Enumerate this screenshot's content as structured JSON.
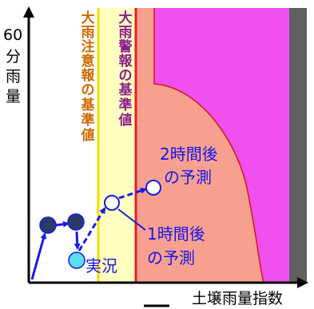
{
  "y_axis": {
    "value_label": "60",
    "text_chars": [
      "分",
      "雨",
      "量"
    ]
  },
  "x_axis": {
    "label": "土壌雨量指数"
  },
  "bands": {
    "advisory_label_chars": [
      "大",
      "雨",
      "注",
      "意",
      "報",
      "の",
      "基",
      "準",
      "値"
    ],
    "warning_label_chars": [
      "大",
      "雨",
      "警",
      "報",
      "の",
      "基",
      "準",
      "値"
    ]
  },
  "annotations": {
    "current": "実況",
    "forecast_1h_line1": "1時間後",
    "forecast_1h_line2": "の予測",
    "forecast_2h_line1": "2時間後",
    "forecast_2h_line2": "の予測"
  },
  "colors": {
    "advisory_band": "#ffffc0",
    "advisory_line": "#ffd800",
    "warning_region": "#f8a090",
    "warning_line": "#e02020",
    "danger_region": "#f050f0",
    "extreme_region": "#606060",
    "past_marker": "#283c64",
    "current_marker": "#5ce0f0",
    "arrow": "#1a1ae6",
    "advisory_text": "#cc6a00",
    "warning_text": "#8a1f8a"
  }
}
